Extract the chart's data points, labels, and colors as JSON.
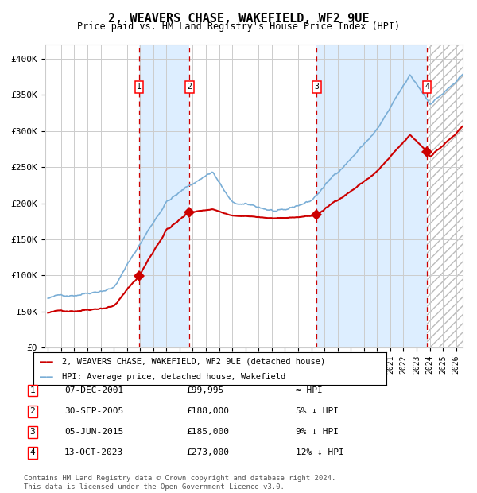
{
  "title": "2, WEAVERS CHASE, WAKEFIELD, WF2 9UE",
  "subtitle": "Price paid vs. HM Land Registry's House Price Index (HPI)",
  "footer": "Contains HM Land Registry data © Crown copyright and database right 2024.\nThis data is licensed under the Open Government Licence v3.0.",
  "legend_line1": "2, WEAVERS CHASE, WAKEFIELD, WF2 9UE (detached house)",
  "legend_line2": "HPI: Average price, detached house, Wakefield",
  "transactions": [
    {
      "num": 1,
      "date": "07-DEC-2001",
      "price": 99995,
      "price_str": "£99,995",
      "relation": "≈ HPI",
      "year": 2001.92
    },
    {
      "num": 2,
      "date": "30-SEP-2005",
      "price": 188000,
      "price_str": "£188,000",
      "relation": "5% ↓ HPI",
      "year": 2005.75
    },
    {
      "num": 3,
      "date": "05-JUN-2015",
      "price": 185000,
      "price_str": "£185,000",
      "relation": "9% ↓ HPI",
      "year": 2015.42
    },
    {
      "num": 4,
      "date": "13-OCT-2023",
      "price": 273000,
      "price_str": "£273,000",
      "relation": "12% ↓ HPI",
      "year": 2023.79
    }
  ],
  "hpi_color": "#7aaed6",
  "price_color": "#cc0000",
  "shade_color": "#ddeeff",
  "grid_color": "#cccccc",
  "background_color": "#ffffff",
  "ylim": [
    0,
    420000
  ],
  "xlim_start": 1994.8,
  "xlim_end": 2026.5,
  "yticks": [
    0,
    50000,
    100000,
    150000,
    200000,
    250000,
    300000,
    350000,
    400000
  ],
  "ytick_labels": [
    "£0",
    "£50K",
    "£100K",
    "£150K",
    "£200K",
    "£250K",
    "£300K",
    "£350K",
    "£400K"
  ]
}
